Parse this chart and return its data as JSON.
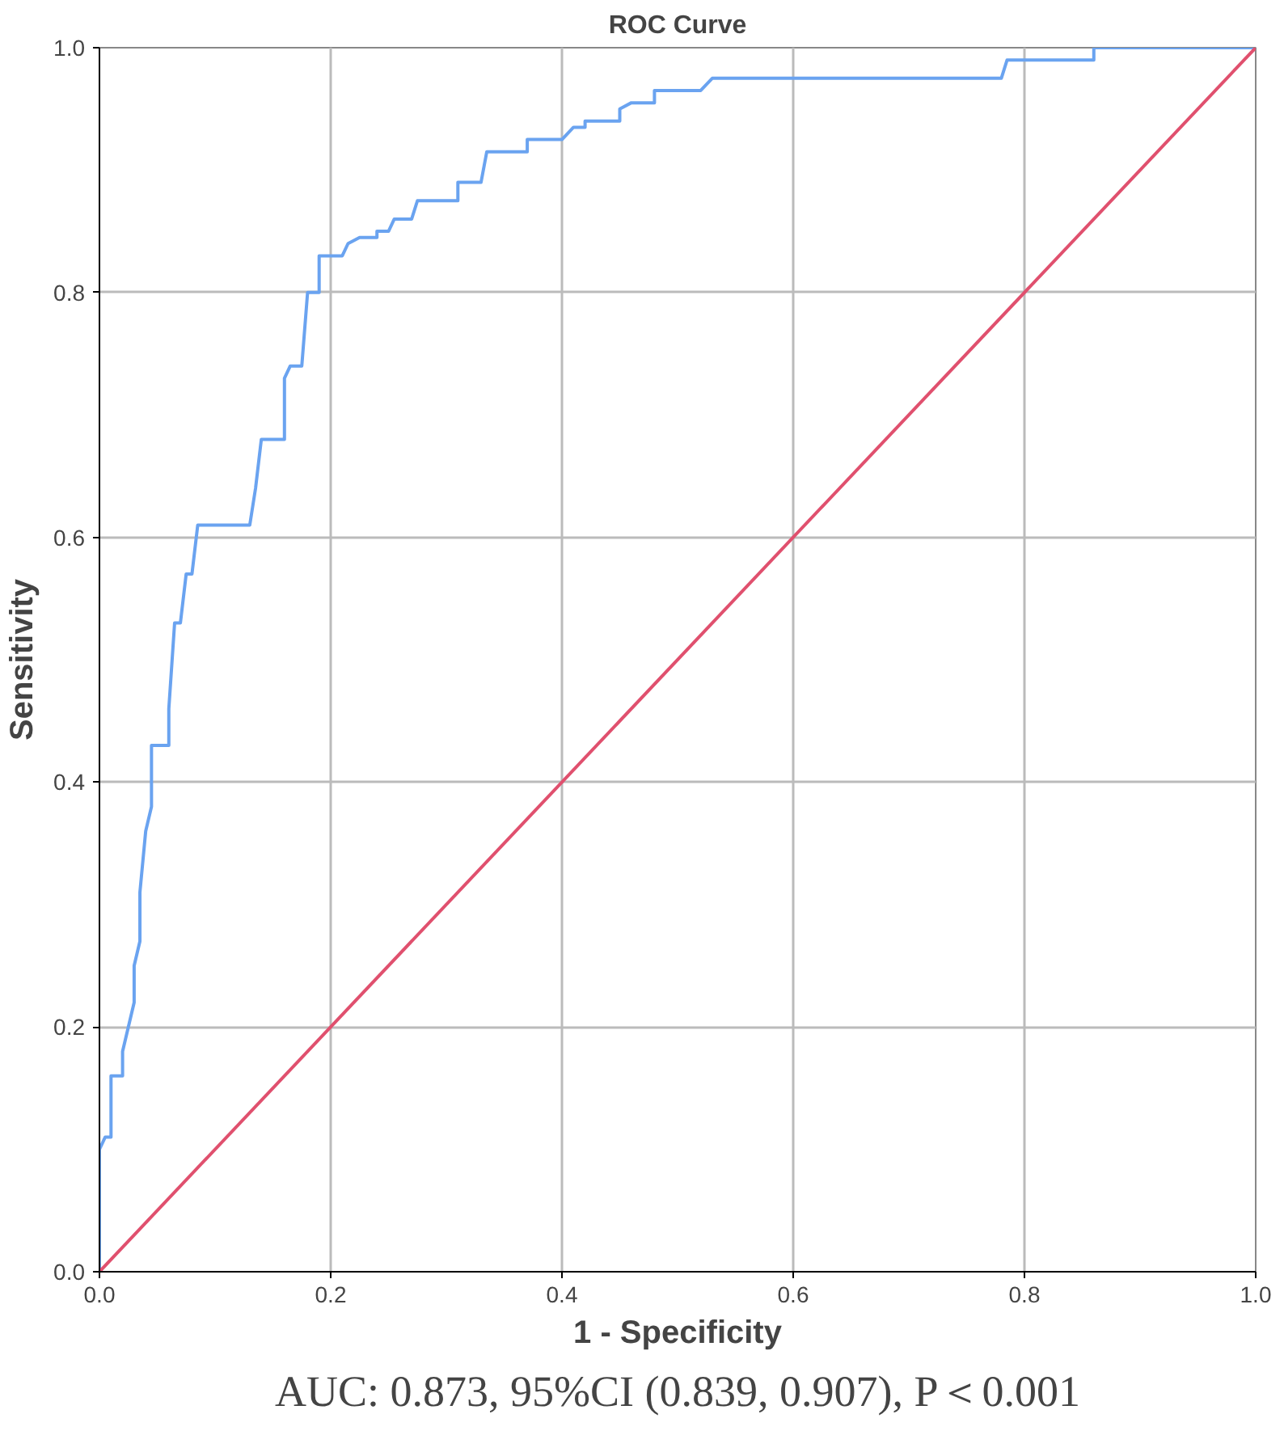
{
  "chart_data": {
    "type": "line",
    "title": "ROC Curve",
    "xlabel": "1 - Specificity",
    "ylabel": "Sensitivity",
    "annotations": [
      "AUC: 0.873, 95%CI (0.839, 0.907), P＜0.001"
    ],
    "xlim": [
      0,
      1
    ],
    "ylim": [
      0,
      1
    ],
    "xticks": [
      {
        "value": 0,
        "label": "0.0"
      },
      {
        "value": 0.2,
        "label": "0.2"
      },
      {
        "value": 0.4,
        "label": "0.4"
      },
      {
        "value": 0.6,
        "label": "0.6"
      },
      {
        "value": 0.8,
        "label": "0.8"
      },
      {
        "value": 1,
        "label": "1.0"
      }
    ],
    "yticks": [
      {
        "value": 0,
        "label": "0.0"
      },
      {
        "value": 0.2,
        "label": "0.2"
      },
      {
        "value": 0.4,
        "label": "0.4"
      },
      {
        "value": 0.6,
        "label": "0.6"
      },
      {
        "value": 0.8,
        "label": "0.8"
      },
      {
        "value": 1,
        "label": "1.0"
      }
    ],
    "grid": true,
    "marker": "none",
    "line_style": "solid",
    "series": [
      {
        "color": "#6aa3f0",
        "x": [
          0,
          0,
          0.005,
          0.01,
          0.01,
          0.02,
          0.02,
          0.025,
          0.03,
          0.03,
          0.035,
          0.035,
          0.04,
          0.045,
          0.045,
          0.06,
          0.06,
          0.065,
          0.07,
          0.075,
          0.08,
          0.085,
          0.13,
          0.135,
          0.14,
          0.16,
          0.16,
          0.165,
          0.175,
          0.18,
          0.19,
          0.19,
          0.21,
          0.215,
          0.225,
          0.24,
          0.24,
          0.25,
          0.255,
          0.27,
          0.275,
          0.31,
          0.31,
          0.33,
          0.335,
          0.37,
          0.37,
          0.4,
          0.41,
          0.42,
          0.42,
          0.45,
          0.45,
          0.46,
          0.48,
          0.48,
          0.52,
          0.53,
          0.78,
          0.785,
          0.86,
          0.86,
          1
        ],
        "values": [
          0,
          0.1,
          0.11,
          0.11,
          0.16,
          0.16,
          0.18,
          0.2,
          0.22,
          0.25,
          0.27,
          0.31,
          0.36,
          0.38,
          0.43,
          0.43,
          0.46,
          0.53,
          0.53,
          0.57,
          0.57,
          0.61,
          0.61,
          0.64,
          0.68,
          0.68,
          0.73,
          0.74,
          0.74,
          0.8,
          0.8,
          0.83,
          0.83,
          0.84,
          0.845,
          0.845,
          0.85,
          0.85,
          0.86,
          0.86,
          0.875,
          0.875,
          0.89,
          0.89,
          0.915,
          0.915,
          0.925,
          0.925,
          0.935,
          0.935,
          0.94,
          0.94,
          0.95,
          0.955,
          0.955,
          0.965,
          0.965,
          0.975,
          0.975,
          0.99,
          0.99,
          1,
          1
        ]
      },
      {
        "color": "#e0506e",
        "x": [
          0,
          1
        ],
        "values": [
          0,
          1
        ]
      }
    ]
  }
}
